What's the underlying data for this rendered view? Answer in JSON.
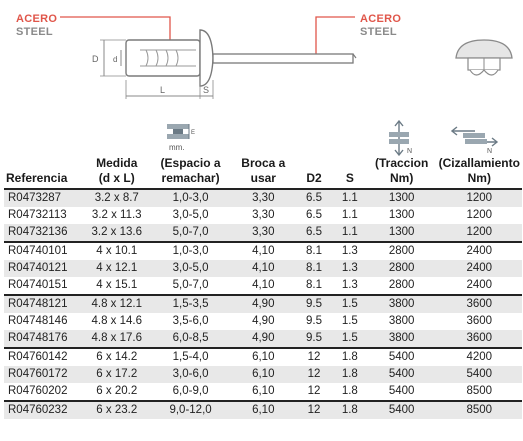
{
  "callouts": [
    {
      "line1": "ACERO",
      "line2": "STEEL"
    },
    {
      "line1": "ACERO",
      "line2": "STEEL"
    }
  ],
  "diagram": {
    "label_D": "D",
    "label_d": "d",
    "label_L": "L",
    "label_S": "S"
  },
  "icons": {
    "mm_label": "mm."
  },
  "columns": [
    {
      "label": "Referencia"
    },
    {
      "label": "Medida (d x L)"
    },
    {
      "label": "(Espacio a remachar)"
    },
    {
      "label": "Broca a usar"
    },
    {
      "label": "D2"
    },
    {
      "label": "S"
    },
    {
      "label": "(Traccion Nm)"
    },
    {
      "label": "(Cizallamiento Nm)"
    }
  ],
  "header": {
    "ref": "Referencia",
    "medida_1": "Medida",
    "medida_2": "(d x L)",
    "espacio_1": "(Espacio a",
    "espacio_2": "remachar)",
    "broca_1": "Broca a",
    "broca_2": "usar",
    "d2": "D2",
    "s": "S",
    "traccion_1": "(Traccion",
    "traccion_2": "Nm)",
    "cizall_1": "(Cizallamiento",
    "cizall_2": "Nm)"
  },
  "rows": [
    [
      "R0473287",
      "3.2 x 8.7",
      "1,0-3,0",
      "3,30",
      "6.5",
      "1.1",
      "1300",
      "1200"
    ],
    [
      "R04732113",
      "3.2 x 11.3",
      "3,0-5,0",
      "3,30",
      "6.5",
      "1.1",
      "1300",
      "1200"
    ],
    [
      "R04732136",
      "3.2 x 13.6",
      "5,0-7,0",
      "3,30",
      "6.5",
      "1.1",
      "1300",
      "1200"
    ],
    [
      "R04740101",
      "4 x 10.1",
      "1,0-3,0",
      "4,10",
      "8.1",
      "1.3",
      "2800",
      "2400"
    ],
    [
      "R04740121",
      "4 x 12.1",
      "3,0-5,0",
      "4,10",
      "8.1",
      "1.3",
      "2800",
      "2400"
    ],
    [
      "R04740151",
      "4 x 15.1",
      "5,0-7,0",
      "4,10",
      "8.1",
      "1.3",
      "2800",
      "2400"
    ],
    [
      "R04748121",
      "4.8 x 12.1",
      "1,5-3,5",
      "4,90",
      "9.5",
      "1.5",
      "3800",
      "3600"
    ],
    [
      "R04748146",
      "4.8 x 14.6",
      "3,5-6,0",
      "4,90",
      "9.5",
      "1.5",
      "3800",
      "3600"
    ],
    [
      "R04748176",
      "4.8 x 17.6",
      "6,0-8,5",
      "4,90",
      "9.5",
      "1.5",
      "3800",
      "3600"
    ],
    [
      "R04760142",
      "6 x 14.2",
      "1,5-4,0",
      "6,10",
      "12",
      "1.8",
      "5400",
      "4200"
    ],
    [
      "R04760172",
      "6 x 17.2",
      "3,0-6,0",
      "6,10",
      "12",
      "1.8",
      "5400",
      "5400"
    ],
    [
      "R04760202",
      "6 x 20.2",
      "6,0-9,0",
      "6,10",
      "12",
      "1.8",
      "5400",
      "8500"
    ],
    [
      "R04760232",
      "6 x 23.2",
      "9,0-12,0",
      "6,10",
      "12",
      "1.8",
      "5400",
      "8500"
    ]
  ]
}
